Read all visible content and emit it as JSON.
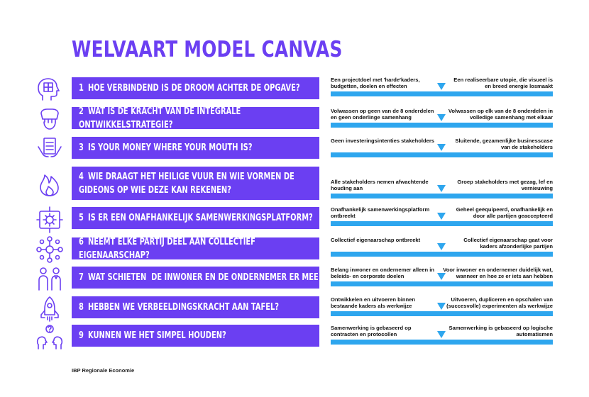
{
  "title": "WELVAART MODEL CANVAS",
  "footer": "IBP Regionale Economie",
  "colors": {
    "accent": "#6b3ff2",
    "scale": "#2ea6ee"
  },
  "rows": [
    {
      "num": "1",
      "icon": "head-puzzle-icon",
      "question": "HOE VERBINDEND IS DE DROOM ACHTER DE OPGAVE?",
      "left": "Een projectdoel met 'harde'kaders, budgetten, doelen en effecten",
      "right": "Een realiseerbare utopie, die visueel is en breed energie losmaakt"
    },
    {
      "num": "2",
      "icon": "hand-grip-icon",
      "question": "WAT IS DE KRACHT VAN DE INTEGRALE ONTWIKKELSTRATEGIE?",
      "left": "Volwassen op geen van de 8 onderdelen en geen onderlinge samenhang",
      "right": "Volwassen op elk van de 8 onderdelen in volledige samenhang met elkaar"
    },
    {
      "num": "3",
      "icon": "money-hands-icon",
      "question": "IS YOUR MONEY WHERE YOUR MOUTH IS?",
      "left": "Geen investeringsintenties stakeholders",
      "right": "Sluitende, gezamenlijke businesscase van de stakeholders"
    },
    {
      "num": "4",
      "icon": "fire-icon",
      "question": "WIE DRAAGT HET HEILIGE VUUR EN WIE VORMEN DE GIDEONS OP WIE DEZE KAN REKENEN?",
      "left": "Alle stakeholders nemen afwachtende houding aan",
      "right": "Groep stakeholders met gezag, lef en vernieuwing"
    },
    {
      "num": "5",
      "icon": "platform-gear-icon",
      "question": "IS ER EEN ONAFHANKELIJK SAMENWERKINGSPLATFORM?",
      "left": "Onafhankelijk samenwerkingsplatform ontbreekt",
      "right": "Geheel geëquipeerd, onafhankelijk en door alle partijen geaccepteerd"
    },
    {
      "num": "6",
      "icon": "network-people-icon",
      "question": "NEEMT ELKE PARTIJ DEEL AAN COLLECTIEF EIGENAARSCHAP?",
      "left": "Collectief eigenaarschap ontbreekt",
      "right": "Collectief eigenaarschap gaat voor kaders afzonderlijke partijen"
    },
    {
      "num": "7",
      "icon": "two-persons-icon",
      "question": "WAT SCHIETEN  DE INWONER EN DE ONDERNEMER ER MEE OP?",
      "left": "Belang inwoner en ondernemer alleen in beleids- en corporate doelen",
      "right": "Voor inwoner en ondernemer duidelijk wat, wanneer en hoe ze er iets aan hebben"
    },
    {
      "num": "8",
      "icon": "rocket-icon",
      "question": "HEBBEN WE VERBEELDINGSKRACHT AAN TAFEL?",
      "left": "Ontwikkelen en uitvoeren binnen bestaande kaders als werkwijze",
      "right": "Uitvoeren, dupliceren en opschalen van (succesvolle) experimenten als werkwijze"
    },
    {
      "num": "9",
      "icon": "talking-heads-icon",
      "question": "KUNNEN WE HET SIMPEL HOUDEN?",
      "left": "Samenwerking is gebaseerd op contracten en protocollen",
      "right": "Samenwerking is gebaseerd op logische automatismen"
    }
  ]
}
